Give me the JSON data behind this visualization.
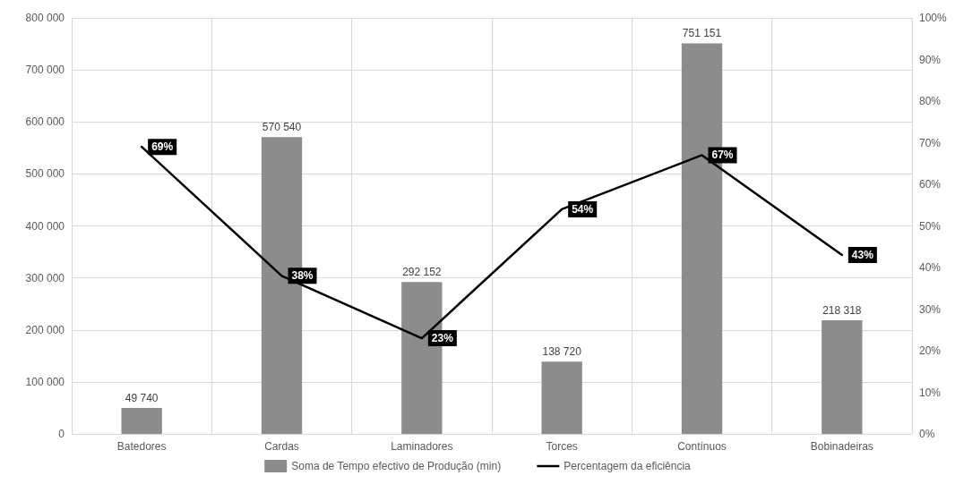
{
  "chart_data": {
    "type": "bar",
    "categories": [
      "Batedores",
      "Cardas",
      "Laminadores",
      "Torces",
      "Contínuos",
      "Bobinadeiras"
    ],
    "series": [
      {
        "name": "Soma de Tempo efectivo de Produção (min)",
        "color": "#8c8c8c",
        "values": [
          49740,
          570540,
          292152,
          138720,
          751151,
          218318
        ],
        "value_labels": [
          "49 740",
          "570 540",
          "292 152",
          "138 720",
          "751 151",
          "218 318"
        ]
      },
      {
        "name": "Percentagem da eficiência",
        "type": "line",
        "axis": "y2",
        "color": "#000000",
        "values": [
          69,
          38,
          23,
          54,
          67,
          43
        ],
        "value_labels": [
          "69%",
          "38%",
          "23%",
          "54%",
          "67%",
          "43%"
        ]
      }
    ],
    "ylim": [
      0,
      800000
    ],
    "yticks": [
      {
        "value": 0,
        "label": "0"
      },
      {
        "value": 100000,
        "label": "100 000"
      },
      {
        "value": 200000,
        "label": "200 000"
      },
      {
        "value": 300000,
        "label": "300 000"
      },
      {
        "value": 400000,
        "label": "400 000"
      },
      {
        "value": 500000,
        "label": "500 000"
      },
      {
        "value": 600000,
        "label": "600 000"
      },
      {
        "value": 700000,
        "label": "700 000"
      },
      {
        "value": 800000,
        "label": "800 000"
      }
    ],
    "y2lim": [
      0,
      100
    ],
    "y2ticks": [
      {
        "value": 0,
        "label": "0%"
      },
      {
        "value": 10,
        "label": "10%"
      },
      {
        "value": 20,
        "label": "20%"
      },
      {
        "value": 30,
        "label": "30%"
      },
      {
        "value": 40,
        "label": "40%"
      },
      {
        "value": 50,
        "label": "50%"
      },
      {
        "value": 60,
        "label": "60%"
      },
      {
        "value": 70,
        "label": "70%"
      },
      {
        "value": 80,
        "label": "80%"
      },
      {
        "value": 90,
        "label": "90%"
      },
      {
        "value": 100,
        "label": "100%"
      }
    ],
    "grid": true,
    "legend": "bottom",
    "marker": "none",
    "line_style": "solid"
  }
}
